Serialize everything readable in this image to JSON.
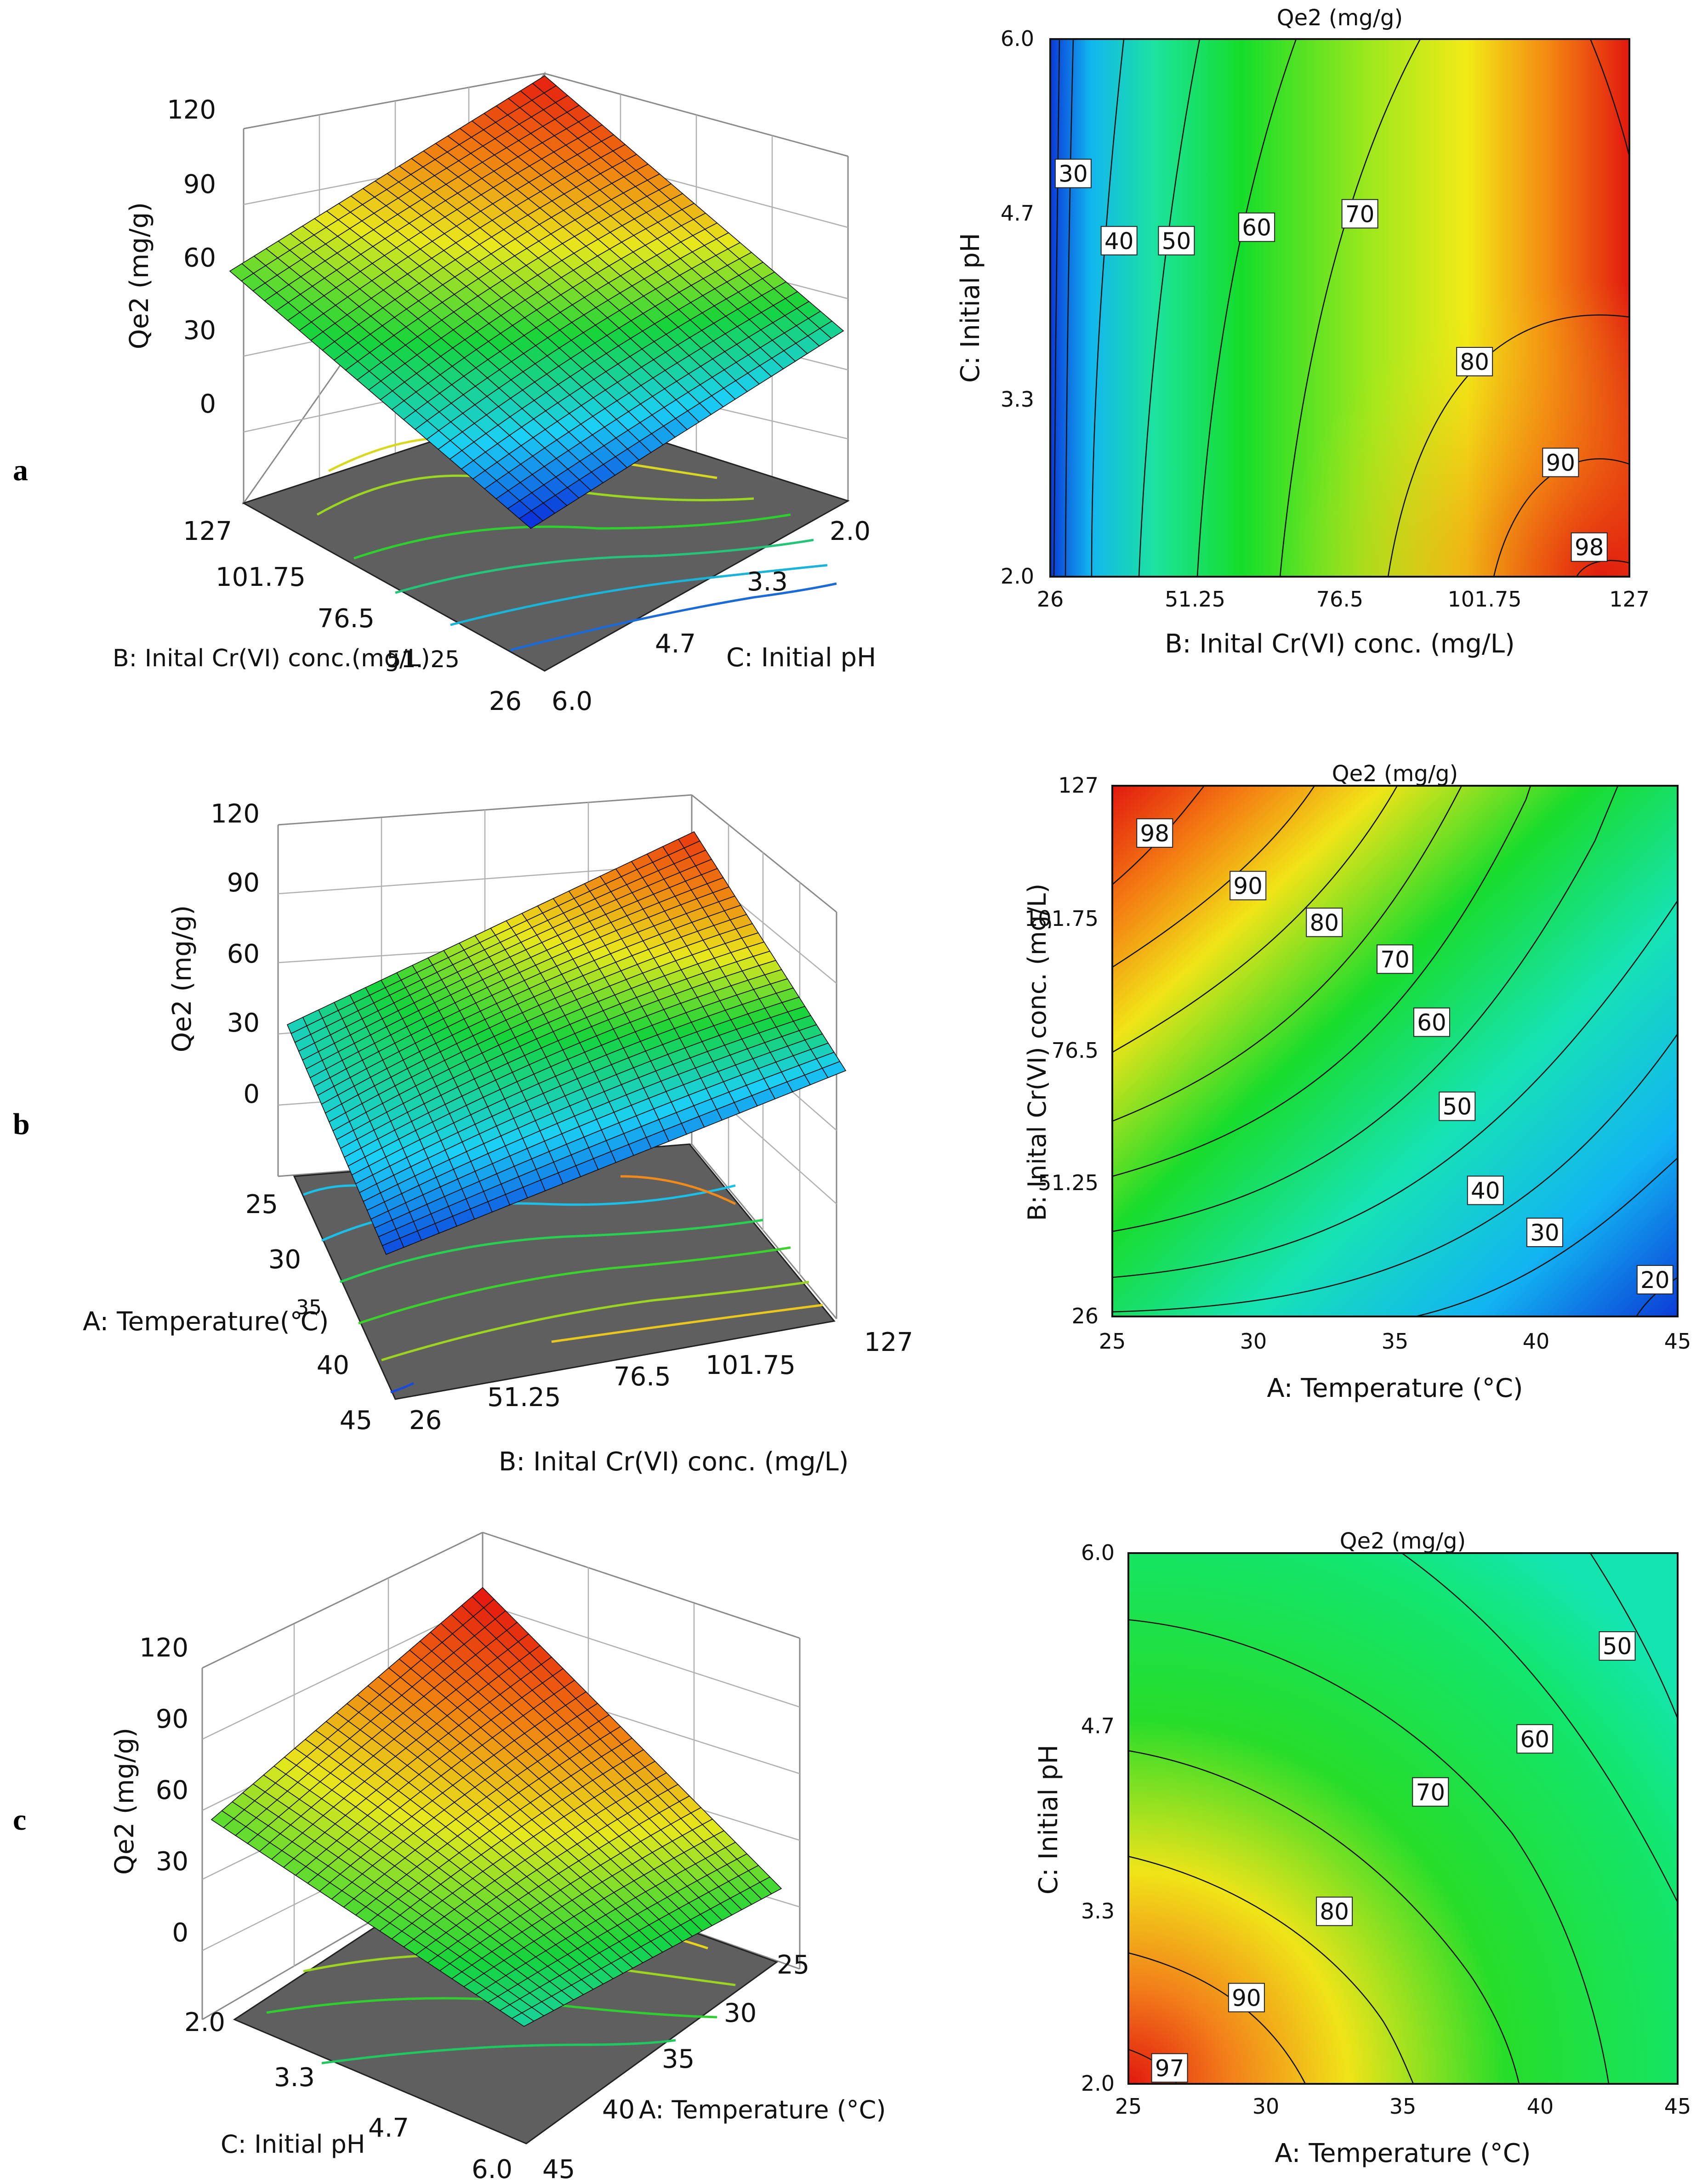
{
  "figure": {
    "panels": [
      {
        "label": "a",
        "colors": {
          "surface_ramp": [
            "#0a25d8",
            "#1bd0f5",
            "#16d43a",
            "#e8e81c",
            "#f07a10",
            "#e4140f"
          ],
          "floor": "#5e5e5e"
        }
      },
      {
        "label": "b"
      },
      {
        "label": "c"
      }
    ]
  },
  "chart_data": [
    {
      "panel": "a",
      "type": "surface3d",
      "zlabel": "Qe2 (mg/g)",
      "zticks": [
        "0",
        "30",
        "60",
        "90",
        "120"
      ],
      "axis1": {
        "label": "B: Inital Cr(VI) conc.(mg/L)",
        "ticks": [
          "127",
          "101.75",
          "76.5",
          "51. 25",
          "26"
        ]
      },
      "axis2": {
        "label": "C: Initial pH",
        "ticks": [
          "2.0",
          "3.3",
          "4.7",
          "6.0"
        ]
      },
      "corner_heights": {
        "near": 0,
        "left": 55,
        "right": 35,
        "back": 118
      }
    },
    {
      "panel": "a",
      "type": "contour",
      "title": "Qe2 (mg/g)",
      "xlabel": "B: Inital Cr(VI) conc. (mg/L)",
      "ylabel": "C: Initial pH",
      "xticks": [
        "26",
        "51.25",
        "76.5",
        "101.75",
        "127"
      ],
      "yticks": [
        "2.0",
        "3.3",
        "4.7",
        "6.0"
      ],
      "xlim": [
        26,
        127
      ],
      "ylim": [
        2.0,
        6.0
      ],
      "levels": [
        30,
        40,
        50,
        60,
        70,
        80,
        90,
        98
      ],
      "contour_labels": [
        {
          "value": "30",
          "x": 30,
          "y": 5.0
        },
        {
          "value": "40",
          "x": 38,
          "y": 4.5
        },
        {
          "value": "50",
          "x": 48,
          "y": 4.5
        },
        {
          "value": "60",
          "x": 62,
          "y": 4.6
        },
        {
          "value": "70",
          "x": 80,
          "y": 4.7
        },
        {
          "value": "80",
          "x": 100,
          "y": 3.6
        },
        {
          "value": "90",
          "x": 115,
          "y": 2.85
        },
        {
          "value": "98",
          "x": 120,
          "y": 2.22
        }
      ]
    },
    {
      "panel": "b",
      "type": "surface3d",
      "zlabel": "Qe2 (mg/g)",
      "zticks": [
        "0",
        "30",
        "60",
        "90",
        "120"
      ],
      "axis1": {
        "label": "A: Temperature(℃)",
        "ticks": [
          "25",
          "30",
          "35",
          "40",
          "45"
        ]
      },
      "axis2": {
        "label": "B: Inital Cr(VI) conc. (mg/L)",
        "ticks": [
          "26",
          "51.25",
          "76.5",
          "101.75",
          "127"
        ]
      },
      "corner_heights": {
        "near": 5,
        "left": 30,
        "right": 20,
        "back": 112
      }
    },
    {
      "panel": "b",
      "type": "contour",
      "title": "Qe2 (mg/g)",
      "xlabel": "A: Temperature  (°C)",
      "ylabel": "B: Inital Cr(VI) conc. (mg/L)",
      "xticks": [
        "25",
        "30",
        "35",
        "40",
        "45"
      ],
      "yticks": [
        "26",
        "51.25",
        "76.5",
        "101.75",
        "127"
      ],
      "xlim": [
        25,
        45
      ],
      "ylim": [
        26,
        127
      ],
      "levels": [
        20,
        30,
        40,
        50,
        60,
        70,
        80,
        90,
        98
      ],
      "contour_labels": [
        {
          "value": "98",
          "x": 26.5,
          "y": 118
        },
        {
          "value": "90",
          "x": 29.8,
          "y": 108
        },
        {
          "value": "80",
          "x": 32.5,
          "y": 101
        },
        {
          "value": "70",
          "x": 35,
          "y": 94
        },
        {
          "value": "60",
          "x": 36.3,
          "y": 82
        },
        {
          "value": "50",
          "x": 37.2,
          "y": 66
        },
        {
          "value": "40",
          "x": 38.2,
          "y": 50
        },
        {
          "value": "30",
          "x": 40.3,
          "y": 42
        },
        {
          "value": "20",
          "x": 44.2,
          "y": 33
        }
      ]
    },
    {
      "panel": "c",
      "type": "surface3d",
      "zlabel": "Qe2 (mg/g)",
      "zticks": [
        "0",
        "30",
        "60",
        "90",
        "120"
      ],
      "axis1": {
        "label": "C: Initial pH",
        "ticks": [
          "2.0",
          "3.3",
          "4.7",
          "6.0"
        ]
      },
      "axis2": {
        "label": "A: Temperature  (°C)",
        "ticks": [
          "25",
          "30",
          "35",
          "40",
          "45"
        ]
      },
      "corner_heights": {
        "near": 35,
        "left": 55,
        "right": 52,
        "back": 120
      }
    },
    {
      "panel": "c",
      "type": "contour",
      "title": "Qe2 (mg/g)",
      "xlabel": "A: Temperature  (°C)",
      "ylabel": "C: Initial pH",
      "xticks": [
        "25",
        "30",
        "35",
        "40",
        "45"
      ],
      "yticks": [
        "2.0",
        "3.3",
        "4.7",
        "6.0"
      ],
      "xlim": [
        25,
        45
      ],
      "ylim": [
        2.0,
        6.0
      ],
      "levels": [
        50,
        60,
        70,
        80,
        90,
        97
      ],
      "contour_labels": [
        {
          "value": "50",
          "x": 42.8,
          "y": 5.3
        },
        {
          "value": "60",
          "x": 39.8,
          "y": 4.6
        },
        {
          "value": "70",
          "x": 36,
          "y": 4.2
        },
        {
          "value": "80",
          "x": 32.5,
          "y": 3.3
        },
        {
          "value": "90",
          "x": 29.3,
          "y": 2.65
        },
        {
          "value": "97",
          "x": 26.5,
          "y": 2.12
        }
      ]
    }
  ]
}
